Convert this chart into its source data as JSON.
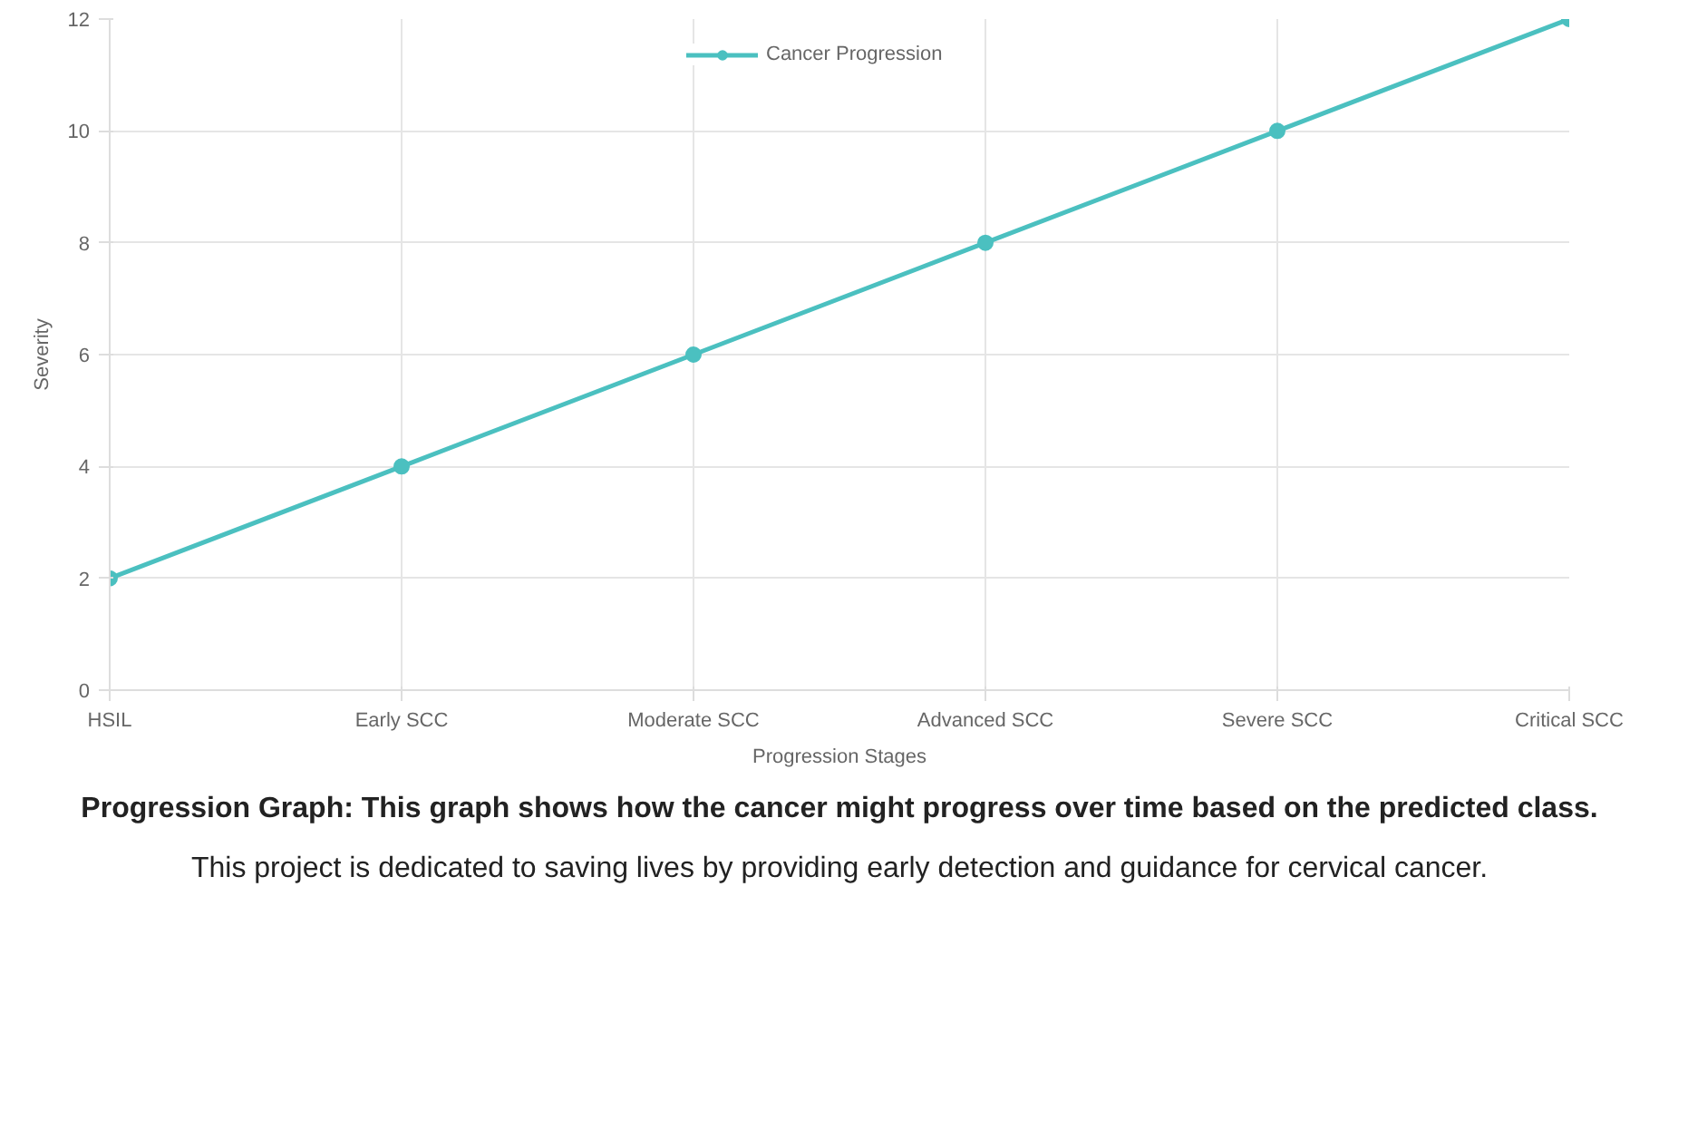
{
  "chart_data": {
    "type": "line",
    "xlabel": "Progression Stages",
    "ylabel": "Severity",
    "categories": [
      "HSIL",
      "Early SCC",
      "Moderate SCC",
      "Advanced SCC",
      "Severe SCC",
      "Critical SCC"
    ],
    "series": [
      {
        "name": "Cancer Progression",
        "color": "#4bc0c0",
        "values": [
          2,
          4,
          6,
          8,
          10,
          12
        ]
      }
    ],
    "ylim": [
      0,
      12
    ],
    "yticks": [
      0,
      2,
      4,
      6,
      8,
      10,
      12
    ],
    "grid": true,
    "legend": "top",
    "marker": "circle",
    "line_style": "solid",
    "annotations": [
      "Progression Graph: This graph shows how the cancer might progress over time based on the predicted class.",
      "This project is dedicated to saving lives by providing early detection and guidance for cervical cancer."
    ]
  }
}
